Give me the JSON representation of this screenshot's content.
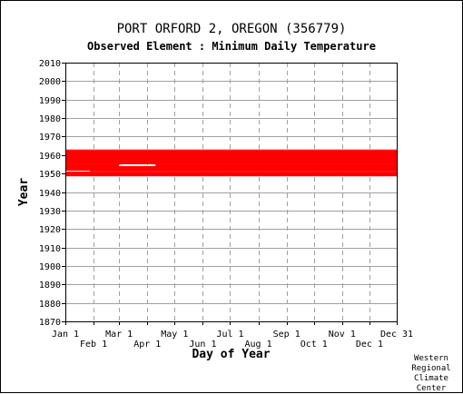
{
  "chart_data": {
    "type": "scatter",
    "title": "PORT ORFORD 2, OREGON   (356779)",
    "subtitle": "Observed Element : Minimum Daily Temperature",
    "xlabel": "Day of Year",
    "ylabel": "Year",
    "xlim": [
      1,
      365
    ],
    "ylim": [
      1870,
      2010
    ],
    "y_ticks": [
      1870,
      1880,
      1890,
      1900,
      1910,
      1920,
      1930,
      1940,
      1950,
      1960,
      1970,
      1980,
      1990,
      2000,
      2010
    ],
    "x_ticks_top_row": [
      {
        "label": "Jan 1",
        "day": 1
      },
      {
        "label": "Mar 1",
        "day": 60
      },
      {
        "label": "May 1",
        "day": 121
      },
      {
        "label": "Jul 1",
        "day": 182
      },
      {
        "label": "Sep 1",
        "day": 244
      },
      {
        "label": "Nov 1",
        "day": 305
      },
      {
        "label": "Dec 31",
        "day": 365
      }
    ],
    "x_ticks_bottom_row": [
      {
        "label": "Feb 1",
        "day": 32
      },
      {
        "label": "Apr 1",
        "day": 91
      },
      {
        "label": "Jun 1",
        "day": 152
      },
      {
        "label": "Aug 1",
        "day": 213
      },
      {
        "label": "Oct 1",
        "day": 274
      },
      {
        "label": "Dec 1",
        "day": 335
      }
    ],
    "grid": true,
    "series": [
      {
        "color": "#ff0000",
        "segments": [
          {
            "x": [
              1,
              365
            ],
            "y": [
              1948.5,
              1951.0
            ]
          },
          {
            "x": [
              1,
              365
            ],
            "y": [
              1951.5,
              1954.0
            ]
          },
          {
            "x": [
              1,
              365
            ],
            "y": [
              1955.0,
              1962.5
            ]
          },
          {
            "x": [
              28,
              365
            ],
            "y": [
              1951.0,
              1951.5
            ]
          },
          {
            "x": [
              1,
              60
            ],
            "y": [
              1954.0,
              1955.0
            ]
          },
          {
            "x": [
              100,
              365
            ],
            "y": [
              1954.0,
              1955.0
            ]
          },
          {
            "x": [
              1,
              365
            ],
            "y": [
              1962.5,
              1963.0
            ]
          }
        ]
      }
    ]
  },
  "credit": [
    "Western",
    "Regional",
    "Climate",
    "Center"
  ]
}
